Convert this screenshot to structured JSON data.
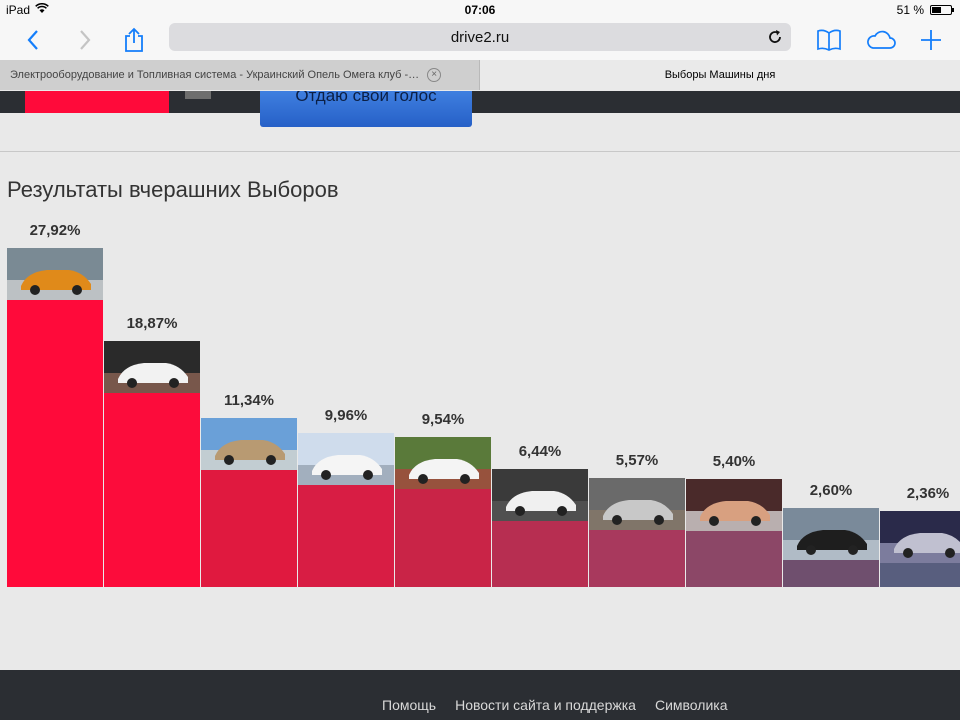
{
  "status": {
    "device": "iPad",
    "time": "07:06",
    "battery": "51 %",
    "battery_level": 0.51
  },
  "browser": {
    "url": "drive2.ru"
  },
  "tabs": [
    {
      "title": "Электрооборудование и Топливная система - Украинский Опель Омега клуб -…",
      "active": false
    },
    {
      "title": "Выборы Машины дня",
      "active": true
    }
  ],
  "page": {
    "vote_button": "Отдаю свой голос",
    "heading": "Результаты вчерашних Выборов"
  },
  "chart_data": {
    "type": "bar",
    "values": [
      27.92,
      18.87,
      11.34,
      9.96,
      9.54,
      6.44,
      5.57,
      5.4,
      2.6,
      2.36
    ],
    "labels": [
      "27,92%",
      "18,87%",
      "11,34%",
      "9,96%",
      "9,54%",
      "6,44%",
      "5,57%",
      "5,40%",
      "2,60%",
      "2,36%"
    ],
    "colors": [
      "#ff0a3a",
      "#fc0c3b",
      "#e0193f",
      "#d81d44",
      "#c92447",
      "#b72e51",
      "#a8395d",
      "#8c4767",
      "#6f4f6e",
      "#585e7e"
    ],
    "photos": [
      "orange-sports-car-photo",
      "white-hatchback-photo",
      "colosseum-car-photo",
      "white-sedan-snow-photo",
      "white-convertible-photo",
      "white-car-garage-photo",
      "silver-car-rear-photo",
      "woman-in-car-photo",
      "black-sedan-photo",
      "silver-car-night-photo"
    ],
    "ylim": [
      0,
      30
    ]
  },
  "footer": {
    "links": [
      "Помощь",
      "Новости сайта и поддержка",
      "Символика"
    ]
  }
}
